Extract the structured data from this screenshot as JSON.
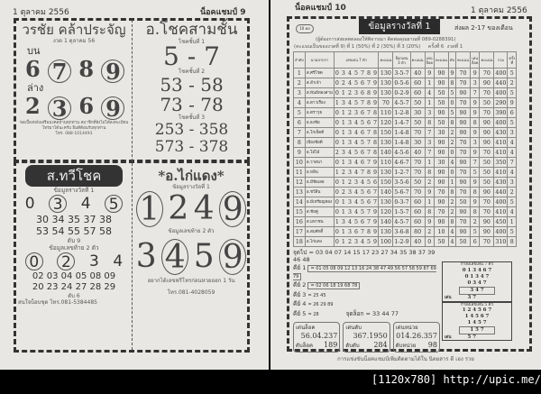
{
  "left": {
    "date": "1 ตุลาคม 2556",
    "page": "น็อคแชมป์ 9",
    "b1": {
      "title": "วรชัย คล้าประจัญ",
      "draw": "งวด 1 ตุลาคม 56",
      "upper_label": "บน",
      "upper": [
        "6",
        "7",
        "8",
        "9"
      ],
      "upper_circled": [
        1,
        3
      ],
      "lower_label": "ล่าง",
      "lower": [
        "2",
        "3",
        "6",
        "9"
      ],
      "lower_circled": [
        1,
        3
      ],
      "note": [
        "ขอเบื้องหลังเสริมมงคลบ้านทุกท่าน สมาชิกที่ยังไม่ได้ลงทะเบียน",
        "โทรมาได้นะครับ ยินดีต้อนรับทุกท่าน",
        "โทร. 088-1014493"
      ]
    },
    "b2": {
      "title": "อ.โชคสามชั้น",
      "l1": "โชคชั้นที่ 1",
      "v1": "5 - 7",
      "l2": "โชคชั้นที่ 2",
      "v2a": "53 - 58",
      "v2b": "73 - 78",
      "l3": "โชคชั้นที่ 3",
      "v3a": "253 - 358",
      "v3b": "573 - 378"
    },
    "b3": {
      "title": "ส.ทวีโชค",
      "sub1": "ข้อมูลรางวัลที่ 1",
      "digits1": [
        "0",
        "3",
        "4",
        "5"
      ],
      "row1": "30 34 35 37 38",
      "row2": "53 54 55 57 58",
      "lock1": "ดับ 9",
      "sub2": "ข้อมูลเลขท้าย 2 ตัว",
      "digits2": [
        "0",
        "2",
        "3",
        "4"
      ],
      "row3": "02 03 04 05 08 09",
      "row4": "20 23 24 27 28 29",
      "lock2": "ดับ 6",
      "contact": "สนใจบ็อบชุด โทร.081-5384485"
    },
    "b4": {
      "title": "*อ.ไก่แดง*",
      "sub1": "ข้อมูลรางวัลที่ 1",
      "digits1": [
        "1",
        "2",
        "4",
        "9"
      ],
      "sub2": "ข้อมูลเลขท้าย 2 ตัว",
      "digits2": [
        "3",
        "4",
        "5",
        "9"
      ],
      "note": "อยากได้เลขฟรีโทรก่อนหวยออก 1 วัน",
      "contact": "โทร.081-4028059"
    }
  },
  "right": {
    "page": "น็อคแชมป์ 10",
    "date": "1 ตุลาคม 2556",
    "badge": "10 คล",
    "title": "ข้อมูลรางวัลที่ 1",
    "range": "ส่งผล 2-17 ของเดือน",
    "info1": "(ผู้ต้องการส่งผลทดลองให้พิจารณา ติดต่อคุณยาณที่ 089-0288391)",
    "info2": "(คะแนนเป็นของงวดที่ 9) ที่ 1 (50%) ที่ 2 (30%) ที่ 3 (20%)     ครั้งที่ 6  งวดที่ 1",
    "headers": [
      "ลำดับ",
      "นามปากกา",
      "เลขเด่น 7 ตัว",
      "คะแนน",
      "ล็อกเด่น 3 ตัว",
      "คะแนน",
      "เด่นล็อค",
      "คะแนน",
      "ดับ",
      "คะแนน",
      "เด่นล็อค",
      "คะแนน",
      "รวม",
      "ครั้งที่"
    ],
    "rows": [
      [
        "1",
        "ส.ศรีโชค",
        "0 3 4 5 7 8 9",
        "130",
        "3-5-7",
        "40",
        "9",
        "90",
        "9",
        "70",
        "9",
        "70",
        "400",
        "5"
      ],
      [
        "2",
        "ส.ลำเจ้า",
        "0 2 4 5 6 7 9",
        "130",
        "0-5-6",
        "60",
        "1",
        "90",
        "8",
        "70",
        "3",
        "90",
        "440",
        "2"
      ],
      [
        "3",
        "ส.พันธ์ทองสาม",
        "0 1 2 3 6 8 9",
        "130",
        "0-2-9",
        "60",
        "4",
        "50",
        "5",
        "90",
        "7",
        "70",
        "400",
        "5"
      ],
      [
        "4",
        "อ.ดาวเรือง",
        "1 3 4 5 7 8 9",
        "70",
        "4-5-7",
        "50",
        "1",
        "50",
        "0",
        "70",
        "9",
        "50",
        "290",
        "9"
      ],
      [
        "5",
        "อ.ตราวุธ",
        "0 1 2 3 6 7 8",
        "110",
        "1-2-8",
        "30",
        "3",
        "90",
        "5",
        "90",
        "9",
        "70",
        "390",
        "6"
      ],
      [
        "6",
        "อ.ธงชัย",
        "0 1 3 4 5 6 7",
        "120",
        "1-4-7",
        "50",
        "8",
        "50",
        "8",
        "90",
        "8",
        "90",
        "400",
        "5"
      ],
      [
        "7",
        "อ.โกเจ็ดดี",
        "0 1 3 4 6 7 8",
        "150",
        "1-4-8",
        "70",
        "7",
        "30",
        "2",
        "90",
        "9",
        "90",
        "430",
        "3"
      ],
      [
        "8",
        "เปียงชัยดี",
        "0 1 3 4 5 7 8",
        "130",
        "1-4-8",
        "30",
        "3",
        "90",
        "2",
        "70",
        "3",
        "90",
        "410",
        "4"
      ],
      [
        "9",
        "อ.โอ๋ไม้",
        "2 3 4 5 6 7 8",
        "140",
        "4-5-6",
        "40",
        "7",
        "90",
        "0",
        "70",
        "9",
        "70",
        "410",
        "4"
      ],
      [
        "10",
        "อ.วาสนา",
        "0 1 3 4 6 7 9",
        "110",
        "4-6-7",
        "70",
        "1",
        "30",
        "4",
        "90",
        "7",
        "50",
        "350",
        "7"
      ],
      [
        "11",
        "อ.หลิน",
        "1 2 3 4 7 8 9",
        "130",
        "1-2-7",
        "70",
        "8",
        "90",
        "0",
        "70",
        "5",
        "50",
        "410",
        "4"
      ],
      [
        "12",
        "อ.มีชัยเลย",
        "0 1 2 3 4 5 6",
        "150",
        "3-5-6",
        "50",
        "2",
        "90",
        "1",
        "90",
        "9",
        "50",
        "430",
        "3"
      ],
      [
        "13",
        "อ.ชวีสิน",
        "0 2 3 4 5 6 7",
        "140",
        "5-6-7",
        "70",
        "9",
        "70",
        "8",
        "70",
        "8",
        "90",
        "440",
        "2"
      ],
      [
        "14",
        "อ.มีเหรียญทอง",
        "0 1 3 4 5 6 7",
        "130",
        "0-3-7",
        "60",
        "1",
        "90",
        "2",
        "50",
        "9",
        "70",
        "400",
        "5"
      ],
      [
        "15",
        "ส.ชัยคู่",
        "0 1 3 4 5 7 9",
        "120",
        "1-5-7",
        "60",
        "8",
        "70",
        "2",
        "90",
        "8",
        "70",
        "410",
        "4"
      ],
      [
        "16",
        "ส.มหาชน",
        "1 3 4 5 6 7 9",
        "140",
        "4-5-7",
        "60",
        "9",
        "90",
        "8",
        "70",
        "2",
        "90",
        "450",
        "1"
      ],
      [
        "17",
        "อ.สมศักดิ์",
        "0 1 3 6 7 8 9",
        "130",
        "3-6-8",
        "80",
        "2",
        "10",
        "4",
        "90",
        "5",
        "90",
        "400",
        "5"
      ],
      [
        "18",
        "อ.ไก่แดง",
        "0 1 2 3 4 5 9",
        "100",
        "1-2-9",
        "40",
        "0",
        "50",
        "4",
        "50",
        "6",
        "70",
        "310",
        "8"
      ]
    ],
    "jud_label": "จุดไป",
    "jud": "= 03 04 07 14 15 17 23 27 34 35 38 37 39 46 48",
    "keys": [
      {
        "label": "คีย์ 1",
        "value": "= 01 05 08 09 12 13 16 24 38 47 49 56 57 58 59 87 69 79"
      },
      {
        "label": "คีย์ 2",
        "value": "= 02 06 18 19 68 78"
      },
      {
        "label": "คีย์ 3",
        "value": "= 25 45"
      },
      {
        "label": "คีย์ 4",
        "value": "= 26 29 89"
      },
      {
        "label": "คีย์ 5",
        "value": "= 28"
      }
    ],
    "jud_lock_label": "จุดล็อก",
    "jud_lock": "= 33 44 77",
    "stats": [
      {
        "l1": "เด่นล็อค",
        "v1": "56.04.237",
        "l2": "ดับล็อค",
        "v2": "189"
      },
      {
        "l1": "เด่นดับ",
        "v1": "367.1950",
        "l2": "ดับดับ",
        "v2": "284"
      },
      {
        "l1": "เด่นหน่วย",
        "v1": "014.26.357",
        "l2": "ดับหน่วย",
        "v2": "98"
      }
    ],
    "tri1": {
      "title": "กำลังเลขเด่น 7 ตัว",
      "rows": [
        "0 1 3 4 6 7",
        "0 1 3 4 7",
        "0 3 4 7",
        "3 4 7"
      ],
      "last_label": "เด่น",
      "last": "3 7"
    },
    "tri2": {
      "title": "กำลังเลขเด่น 5 ตัว",
      "rows": [
        "1 2 4 5 6 7",
        "1 4 5 6 7",
        "1 4 5 7",
        "1 5 7"
      ],
      "last_label": "เด่น",
      "last": "5 7"
    },
    "footer": "การแข่งขันน็อคแชมป์เพิ่มติดตามได้ใน นิตยสาร ดี เฮง รวย"
  },
  "watermark": "[1120x780] http://upic.me/"
}
